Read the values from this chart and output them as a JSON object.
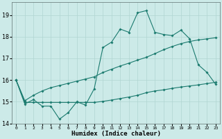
{
  "xlabel": "Humidex (Indice chaleur)",
  "x_values": [
    0,
    1,
    2,
    3,
    4,
    5,
    6,
    7,
    8,
    9,
    10,
    11,
    12,
    13,
    14,
    15,
    16,
    17,
    18,
    19,
    20,
    21,
    22,
    23
  ],
  "series1": [
    16.0,
    14.9,
    15.1,
    14.8,
    14.8,
    14.2,
    14.5,
    15.0,
    14.85,
    15.6,
    17.5,
    17.75,
    18.35,
    18.2,
    19.1,
    19.2,
    18.2,
    18.1,
    18.05,
    18.3,
    17.9,
    16.7,
    16.35,
    15.8
  ],
  "series2": [
    16.0,
    15.05,
    15.3,
    15.5,
    15.65,
    15.75,
    15.85,
    15.95,
    16.05,
    16.15,
    16.35,
    16.5,
    16.65,
    16.78,
    16.92,
    17.05,
    17.22,
    17.4,
    17.55,
    17.68,
    17.78,
    17.85,
    17.9,
    17.95
  ],
  "series3": [
    16.0,
    14.97,
    14.97,
    14.97,
    14.97,
    14.97,
    14.97,
    14.97,
    14.97,
    14.97,
    15.02,
    15.08,
    15.15,
    15.22,
    15.3,
    15.42,
    15.5,
    15.55,
    15.62,
    15.68,
    15.73,
    15.78,
    15.84,
    15.9
  ],
  "line_color": "#1a7a6e",
  "bg_color": "#cceae8",
  "grid_color": "#b0d5d2",
  "ylim": [
    14.0,
    19.6
  ],
  "yticks": [
    14,
    15,
    16,
    17,
    18,
    19
  ],
  "marker": "D",
  "markersize": 1.8,
  "linewidth": 0.8
}
